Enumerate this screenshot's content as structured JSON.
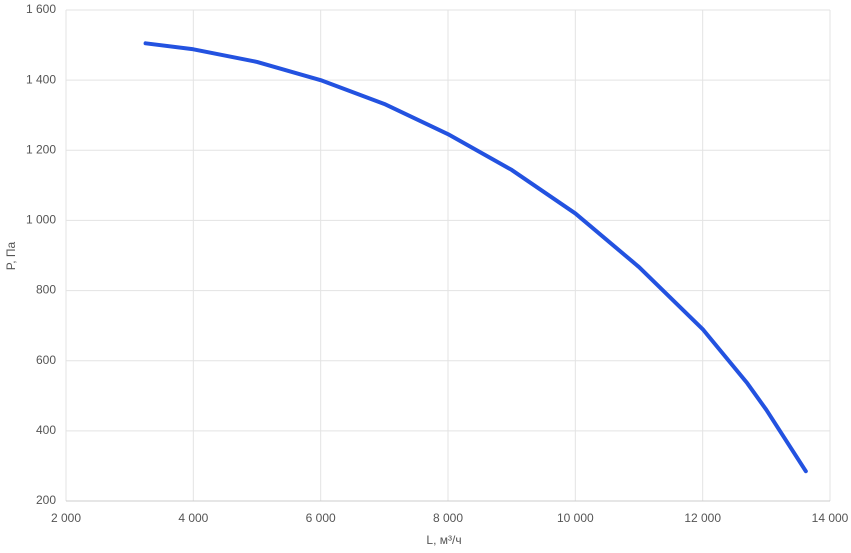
{
  "chart_data": {
    "type": "line",
    "x_label": "L, м³/ч",
    "y_label": "P, Па",
    "series": [
      {
        "color": "#2352e0",
        "x": [
          3250,
          4000,
          5000,
          6000,
          7000,
          8000,
          9000,
          10000,
          11000,
          12000,
          12700,
          13000,
          13620
        ],
        "values": [
          1505,
          1488,
          1452,
          1400,
          1332,
          1246,
          1144,
          1020,
          867,
          690,
          536,
          460,
          285
        ]
      }
    ],
    "xlim": [
      2000,
      14000
    ],
    "ylim": [
      200,
      1600
    ],
    "xticks": [
      {
        "value": 2000,
        "label": "2 000"
      },
      {
        "value": 4000,
        "label": "4 000"
      },
      {
        "value": 6000,
        "label": "6 000"
      },
      {
        "value": 8000,
        "label": "8 000"
      },
      {
        "value": 10000,
        "label": "10 000"
      },
      {
        "value": 12000,
        "label": "12 000"
      },
      {
        "value": 14000,
        "label": "14 000"
      }
    ],
    "yticks": [
      200,
      400,
      600,
      800,
      {
        "value": 1000,
        "label": "1 000"
      },
      {
        "value": 1200,
        "label": "1 200"
      },
      {
        "value": 1400,
        "label": "1 400"
      },
      {
        "value": 1600,
        "label": "1 600"
      }
    ],
    "grid": true
  }
}
